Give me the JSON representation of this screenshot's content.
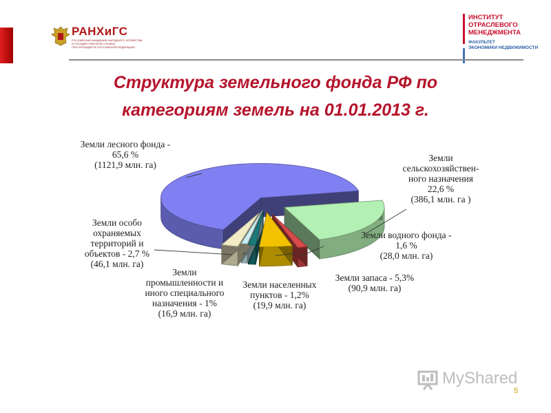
{
  "header": {
    "logo_left_name": "РАНХиГС",
    "logo_left_sub": [
      "РОССИЙСКАЯ АКАДЕМИЯ НАРОДНОГО ХОЗЯЙСТВА",
      "И ГОСУДАРСТВЕННОЙ СЛУЖБЫ",
      "ПРИ ПРЕЗИДЕНТЕ РОССИЙСКОЙ ФЕДЕРАЦИИ"
    ],
    "logo_right_lines": [
      "ИНСТИТУТ",
      "ОТРАСЛЕВОГО",
      "МЕНЕДЖМЕНТА"
    ],
    "logo_right_sub": [
      "ФАКУЛЬТЕТ",
      "ЭКОНОМИКИ НЕДВИЖИМОСТИ"
    ],
    "accent_color": "#b5142c"
  },
  "title_lines": [
    "Структура земельного фонда РФ по",
    "категориям земель на 01.01.2013 г."
  ],
  "chart_data": {
    "type": "pie",
    "style": "3d-exploded",
    "slices": [
      {
        "name": "Земли лесного фонда",
        "percent": 65.6,
        "area_mln_ha": 1121.9,
        "color": "#8080f2",
        "label_lines": [
          "Земли лесного фонда -",
          "65,6 %",
          "(1121,9 млн. га)"
        ]
      },
      {
        "name": "Земли сельскохозяйственного назначения",
        "percent": 22.6,
        "area_mln_ha": 386.1,
        "color": "#b3f0b3",
        "label_lines": [
          "Земли",
          "сельскохозяйствен-",
          "ного назначения",
          "22,6 %",
          "(386,1 млн. га )"
        ]
      },
      {
        "name": "Земли водного фонда",
        "percent": 1.6,
        "area_mln_ha": 28.0,
        "color": "#d84a4a",
        "label_lines": [
          "Земли водного фонда -",
          "1,6 %",
          "(28,0 млн. га)"
        ]
      },
      {
        "name": "Земли запаса",
        "percent": 5.3,
        "area_mln_ha": 90.9,
        "color": "#f2c200",
        "label_lines": [
          "Земли запаса - 5,3%",
          "(90,9 млн. га)"
        ]
      },
      {
        "name": "Земли населенных пунктов",
        "percent": 1.2,
        "area_mln_ha": 19.9,
        "color": "#1a7a7a",
        "label_lines": [
          "Земли населенных",
          "пунктов - 1,2%",
          "(19,9 млн. га)"
        ]
      },
      {
        "name": "Земли промышленности и иного специального назначения",
        "percent": 1.0,
        "area_mln_ha": 16.9,
        "color": "#c9eef2",
        "label_lines": [
          "Земли",
          "промышленности и",
          "иного специального",
          "назначения - 1%",
          "(16,9 млн. га)"
        ]
      },
      {
        "name": "Земли особо охраняемых территорий и объектов",
        "percent": 2.7,
        "area_mln_ha": 46.1,
        "color": "#f2ecc6",
        "label_lines": [
          "Земли особо",
          "охраняемых",
          "территорий и",
          "объектов - 2,7 %",
          "(46,1 млн. га)"
        ]
      }
    ]
  },
  "footer": {
    "page_number": "5",
    "watermark_text": "MyShared"
  }
}
